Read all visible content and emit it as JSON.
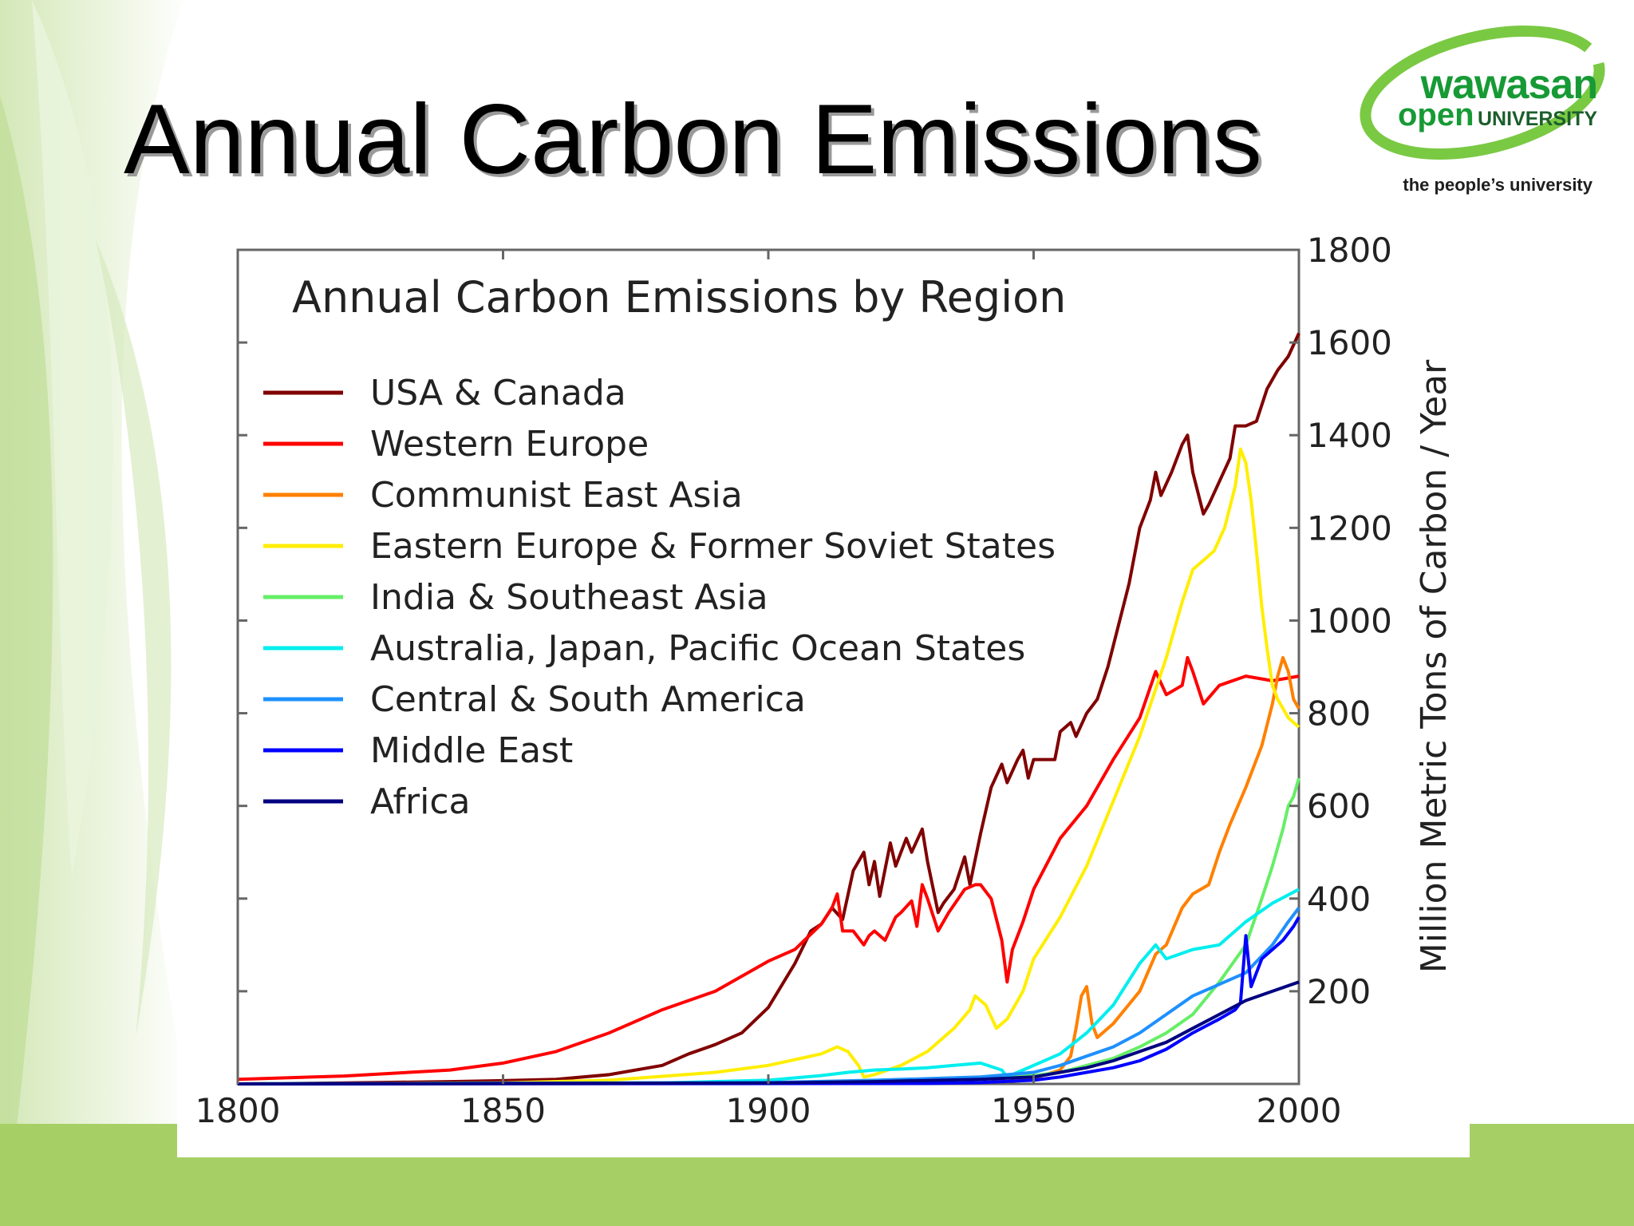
{
  "slide": {
    "title": "Annual Carbon Emissions",
    "logo": {
      "line1": "wawasan",
      "line2_a": "open",
      "line2_b": "UNIVERSITY",
      "tagline": "the people’s university"
    },
    "colors": {
      "bg_green": "#a8d06a",
      "logo_green": "#7ac943",
      "logo_text": "#179a35"
    }
  },
  "chart_data": {
    "type": "line",
    "title": "Annual Carbon Emissions by Region",
    "ylabel": "Million Metric Tons of Carbon / Year",
    "xlabel": "",
    "xlim": [
      1800,
      2000
    ],
    "ylim": [
      0,
      1800
    ],
    "x_ticks": [
      "1800",
      "1850",
      "1900",
      "1950",
      "2000"
    ],
    "y_ticks": [
      "200",
      "400",
      "600",
      "800",
      "1000",
      "1200",
      "1400",
      "1600",
      "1800"
    ],
    "y_axis_side": "right",
    "grid": false,
    "legend_position": "top-left",
    "series": [
      {
        "name": "USA & Canada",
        "color": "#800000",
        "points": [
          [
            1800,
            0
          ],
          [
            1820,
            2
          ],
          [
            1840,
            5
          ],
          [
            1850,
            7
          ],
          [
            1860,
            10
          ],
          [
            1870,
            20
          ],
          [
            1880,
            40
          ],
          [
            1885,
            65
          ],
          [
            1890,
            85
          ],
          [
            1895,
            110
          ],
          [
            1900,
            165
          ],
          [
            1905,
            260
          ],
          [
            1908,
            330
          ],
          [
            1910,
            345
          ],
          [
            1912,
            380
          ],
          [
            1914,
            355
          ],
          [
            1916,
            460
          ],
          [
            1918,
            500
          ],
          [
            1919,
            430
          ],
          [
            1920,
            480
          ],
          [
            1921,
            405
          ],
          [
            1923,
            520
          ],
          [
            1924,
            470
          ],
          [
            1926,
            530
          ],
          [
            1927,
            500
          ],
          [
            1929,
            550
          ],
          [
            1930,
            480
          ],
          [
            1932,
            370
          ],
          [
            1933,
            390
          ],
          [
            1935,
            420
          ],
          [
            1937,
            490
          ],
          [
            1938,
            430
          ],
          [
            1940,
            540
          ],
          [
            1942,
            640
          ],
          [
            1944,
            690
          ],
          [
            1945,
            650
          ],
          [
            1947,
            700
          ],
          [
            1948,
            720
          ],
          [
            1949,
            660
          ],
          [
            1950,
            700
          ],
          [
            1952,
            700
          ],
          [
            1954,
            700
          ],
          [
            1955,
            760
          ],
          [
            1957,
            780
          ],
          [
            1958,
            750
          ],
          [
            1960,
            800
          ],
          [
            1962,
            830
          ],
          [
            1964,
            900
          ],
          [
            1966,
            990
          ],
          [
            1968,
            1080
          ],
          [
            1970,
            1200
          ],
          [
            1972,
            1260
          ],
          [
            1973,
            1320
          ],
          [
            1974,
            1270
          ],
          [
            1976,
            1320
          ],
          [
            1978,
            1380
          ],
          [
            1979,
            1400
          ],
          [
            1980,
            1320
          ],
          [
            1982,
            1230
          ],
          [
            1983,
            1250
          ],
          [
            1985,
            1300
          ],
          [
            1987,
            1350
          ],
          [
            1988,
            1420
          ],
          [
            1990,
            1420
          ],
          [
            1992,
            1430
          ],
          [
            1994,
            1500
          ],
          [
            1996,
            1540
          ],
          [
            1998,
            1570
          ],
          [
            2000,
            1620
          ]
        ]
      },
      {
        "name": "Western Europe",
        "color": "#ff0000",
        "points": [
          [
            1800,
            10
          ],
          [
            1820,
            17
          ],
          [
            1840,
            30
          ],
          [
            1850,
            45
          ],
          [
            1860,
            70
          ],
          [
            1870,
            110
          ],
          [
            1880,
            160
          ],
          [
            1890,
            200
          ],
          [
            1900,
            265
          ],
          [
            1905,
            290
          ],
          [
            1910,
            345
          ],
          [
            1912,
            380
          ],
          [
            1913,
            410
          ],
          [
            1914,
            330
          ],
          [
            1916,
            330
          ],
          [
            1918,
            300
          ],
          [
            1919,
            320
          ],
          [
            1920,
            330
          ],
          [
            1922,
            310
          ],
          [
            1924,
            360
          ],
          [
            1925,
            370
          ],
          [
            1927,
            395
          ],
          [
            1928,
            340
          ],
          [
            1929,
            430
          ],
          [
            1930,
            400
          ],
          [
            1932,
            330
          ],
          [
            1934,
            370
          ],
          [
            1937,
            420
          ],
          [
            1939,
            430
          ],
          [
            1940,
            430
          ],
          [
            1942,
            400
          ],
          [
            1944,
            310
          ],
          [
            1945,
            220
          ],
          [
            1946,
            290
          ],
          [
            1948,
            350
          ],
          [
            1950,
            420
          ],
          [
            1955,
            530
          ],
          [
            1960,
            600
          ],
          [
            1965,
            700
          ],
          [
            1970,
            790
          ],
          [
            1973,
            890
          ],
          [
            1975,
            840
          ],
          [
            1978,
            860
          ],
          [
            1979,
            920
          ],
          [
            1980,
            890
          ],
          [
            1982,
            820
          ],
          [
            1985,
            860
          ],
          [
            1990,
            880
          ],
          [
            1995,
            870
          ],
          [
            2000,
            880
          ]
        ]
      },
      {
        "name": "Communist East Asia",
        "color": "#ff8000",
        "points": [
          [
            1800,
            0
          ],
          [
            1900,
            1
          ],
          [
            1930,
            5
          ],
          [
            1940,
            15
          ],
          [
            1945,
            5
          ],
          [
            1950,
            12
          ],
          [
            1955,
            30
          ],
          [
            1957,
            60
          ],
          [
            1958,
            120
          ],
          [
            1959,
            190
          ],
          [
            1960,
            210
          ],
          [
            1961,
            130
          ],
          [
            1962,
            100
          ],
          [
            1965,
            130
          ],
          [
            1970,
            200
          ],
          [
            1973,
            280
          ],
          [
            1975,
            300
          ],
          [
            1978,
            380
          ],
          [
            1980,
            410
          ],
          [
            1983,
            430
          ],
          [
            1985,
            500
          ],
          [
            1987,
            560
          ],
          [
            1990,
            640
          ],
          [
            1993,
            730
          ],
          [
            1995,
            820
          ],
          [
            1996,
            880
          ],
          [
            1997,
            920
          ],
          [
            1998,
            890
          ],
          [
            1999,
            830
          ],
          [
            2000,
            810
          ]
        ]
      },
      {
        "name": "Eastern Europe & Former Soviet States",
        "color": "#ffee00",
        "points": [
          [
            1800,
            0
          ],
          [
            1850,
            2
          ],
          [
            1870,
            8
          ],
          [
            1890,
            25
          ],
          [
            1900,
            40
          ],
          [
            1910,
            65
          ],
          [
            1913,
            80
          ],
          [
            1915,
            70
          ],
          [
            1917,
            40
          ],
          [
            1918,
            15
          ],
          [
            1920,
            20
          ],
          [
            1925,
            40
          ],
          [
            1930,
            70
          ],
          [
            1935,
            120
          ],
          [
            1938,
            160
          ],
          [
            1939,
            190
          ],
          [
            1941,
            170
          ],
          [
            1943,
            120
          ],
          [
            1945,
            140
          ],
          [
            1948,
            200
          ],
          [
            1950,
            270
          ],
          [
            1955,
            360
          ],
          [
            1960,
            470
          ],
          [
            1965,
            610
          ],
          [
            1970,
            750
          ],
          [
            1975,
            920
          ],
          [
            1978,
            1040
          ],
          [
            1980,
            1110
          ],
          [
            1982,
            1130
          ],
          [
            1984,
            1150
          ],
          [
            1986,
            1200
          ],
          [
            1988,
            1290
          ],
          [
            1989,
            1370
          ],
          [
            1990,
            1340
          ],
          [
            1991,
            1260
          ],
          [
            1992,
            1150
          ],
          [
            1993,
            1030
          ],
          [
            1994,
            940
          ],
          [
            1995,
            860
          ],
          [
            1996,
            830
          ],
          [
            1998,
            790
          ],
          [
            2000,
            770
          ]
        ]
      },
      {
        "name": "India & Southeast Asia",
        "color": "#66ee66",
        "points": [
          [
            1800,
            0
          ],
          [
            1900,
            3
          ],
          [
            1920,
            6
          ],
          [
            1940,
            10
          ],
          [
            1950,
            18
          ],
          [
            1955,
            25
          ],
          [
            1960,
            40
          ],
          [
            1965,
            55
          ],
          [
            1970,
            80
          ],
          [
            1975,
            110
          ],
          [
            1980,
            150
          ],
          [
            1985,
            220
          ],
          [
            1990,
            300
          ],
          [
            1993,
            400
          ],
          [
            1995,
            470
          ],
          [
            1997,
            550
          ],
          [
            1998,
            600
          ],
          [
            1999,
            620
          ],
          [
            2000,
            660
          ]
        ]
      },
      {
        "name": "Australia, Japan, Pacific Ocean States",
        "color": "#00eeee",
        "points": [
          [
            1800,
            0
          ],
          [
            1880,
            2
          ],
          [
            1900,
            8
          ],
          [
            1910,
            18
          ],
          [
            1915,
            25
          ],
          [
            1920,
            30
          ],
          [
            1925,
            32
          ],
          [
            1930,
            35
          ],
          [
            1935,
            40
          ],
          [
            1940,
            45
          ],
          [
            1944,
            30
          ],
          [
            1945,
            15
          ],
          [
            1947,
            25
          ],
          [
            1950,
            40
          ],
          [
            1955,
            65
          ],
          [
            1960,
            110
          ],
          [
            1965,
            170
          ],
          [
            1970,
            260
          ],
          [
            1973,
            300
          ],
          [
            1975,
            270
          ],
          [
            1980,
            290
          ],
          [
            1985,
            300
          ],
          [
            1990,
            350
          ],
          [
            1995,
            390
          ],
          [
            2000,
            420
          ]
        ]
      },
      {
        "name": "Central & South America",
        "color": "#1e90ff",
        "points": [
          [
            1800,
            0
          ],
          [
            1900,
            3
          ],
          [
            1920,
            8
          ],
          [
            1940,
            15
          ],
          [
            1950,
            25
          ],
          [
            1955,
            40
          ],
          [
            1960,
            60
          ],
          [
            1965,
            80
          ],
          [
            1970,
            110
          ],
          [
            1975,
            150
          ],
          [
            1980,
            190
          ],
          [
            1985,
            215
          ],
          [
            1990,
            240
          ],
          [
            1995,
            300
          ],
          [
            1998,
            350
          ],
          [
            2000,
            380
          ]
        ]
      },
      {
        "name": "Middle East",
        "color": "#0000ff",
        "points": [
          [
            1800,
            0
          ],
          [
            1930,
            1
          ],
          [
            1940,
            3
          ],
          [
            1950,
            8
          ],
          [
            1955,
            15
          ],
          [
            1960,
            25
          ],
          [
            1965,
            35
          ],
          [
            1970,
            50
          ],
          [
            1975,
            75
          ],
          [
            1980,
            110
          ],
          [
            1985,
            140
          ],
          [
            1988,
            160
          ],
          [
            1989,
            175
          ],
          [
            1990,
            320
          ],
          [
            1991,
            210
          ],
          [
            1992,
            240
          ],
          [
            1993,
            270
          ],
          [
            1995,
            290
          ],
          [
            1997,
            310
          ],
          [
            1999,
            340
          ],
          [
            2000,
            360
          ]
        ]
      },
      {
        "name": "Africa",
        "color": "#000080",
        "points": [
          [
            1800,
            0
          ],
          [
            1900,
            2
          ],
          [
            1920,
            5
          ],
          [
            1940,
            10
          ],
          [
            1950,
            15
          ],
          [
            1955,
            25
          ],
          [
            1960,
            35
          ],
          [
            1965,
            50
          ],
          [
            1970,
            70
          ],
          [
            1975,
            90
          ],
          [
            1980,
            120
          ],
          [
            1985,
            150
          ],
          [
            1990,
            180
          ],
          [
            1995,
            200
          ],
          [
            2000,
            220
          ]
        ]
      }
    ]
  }
}
